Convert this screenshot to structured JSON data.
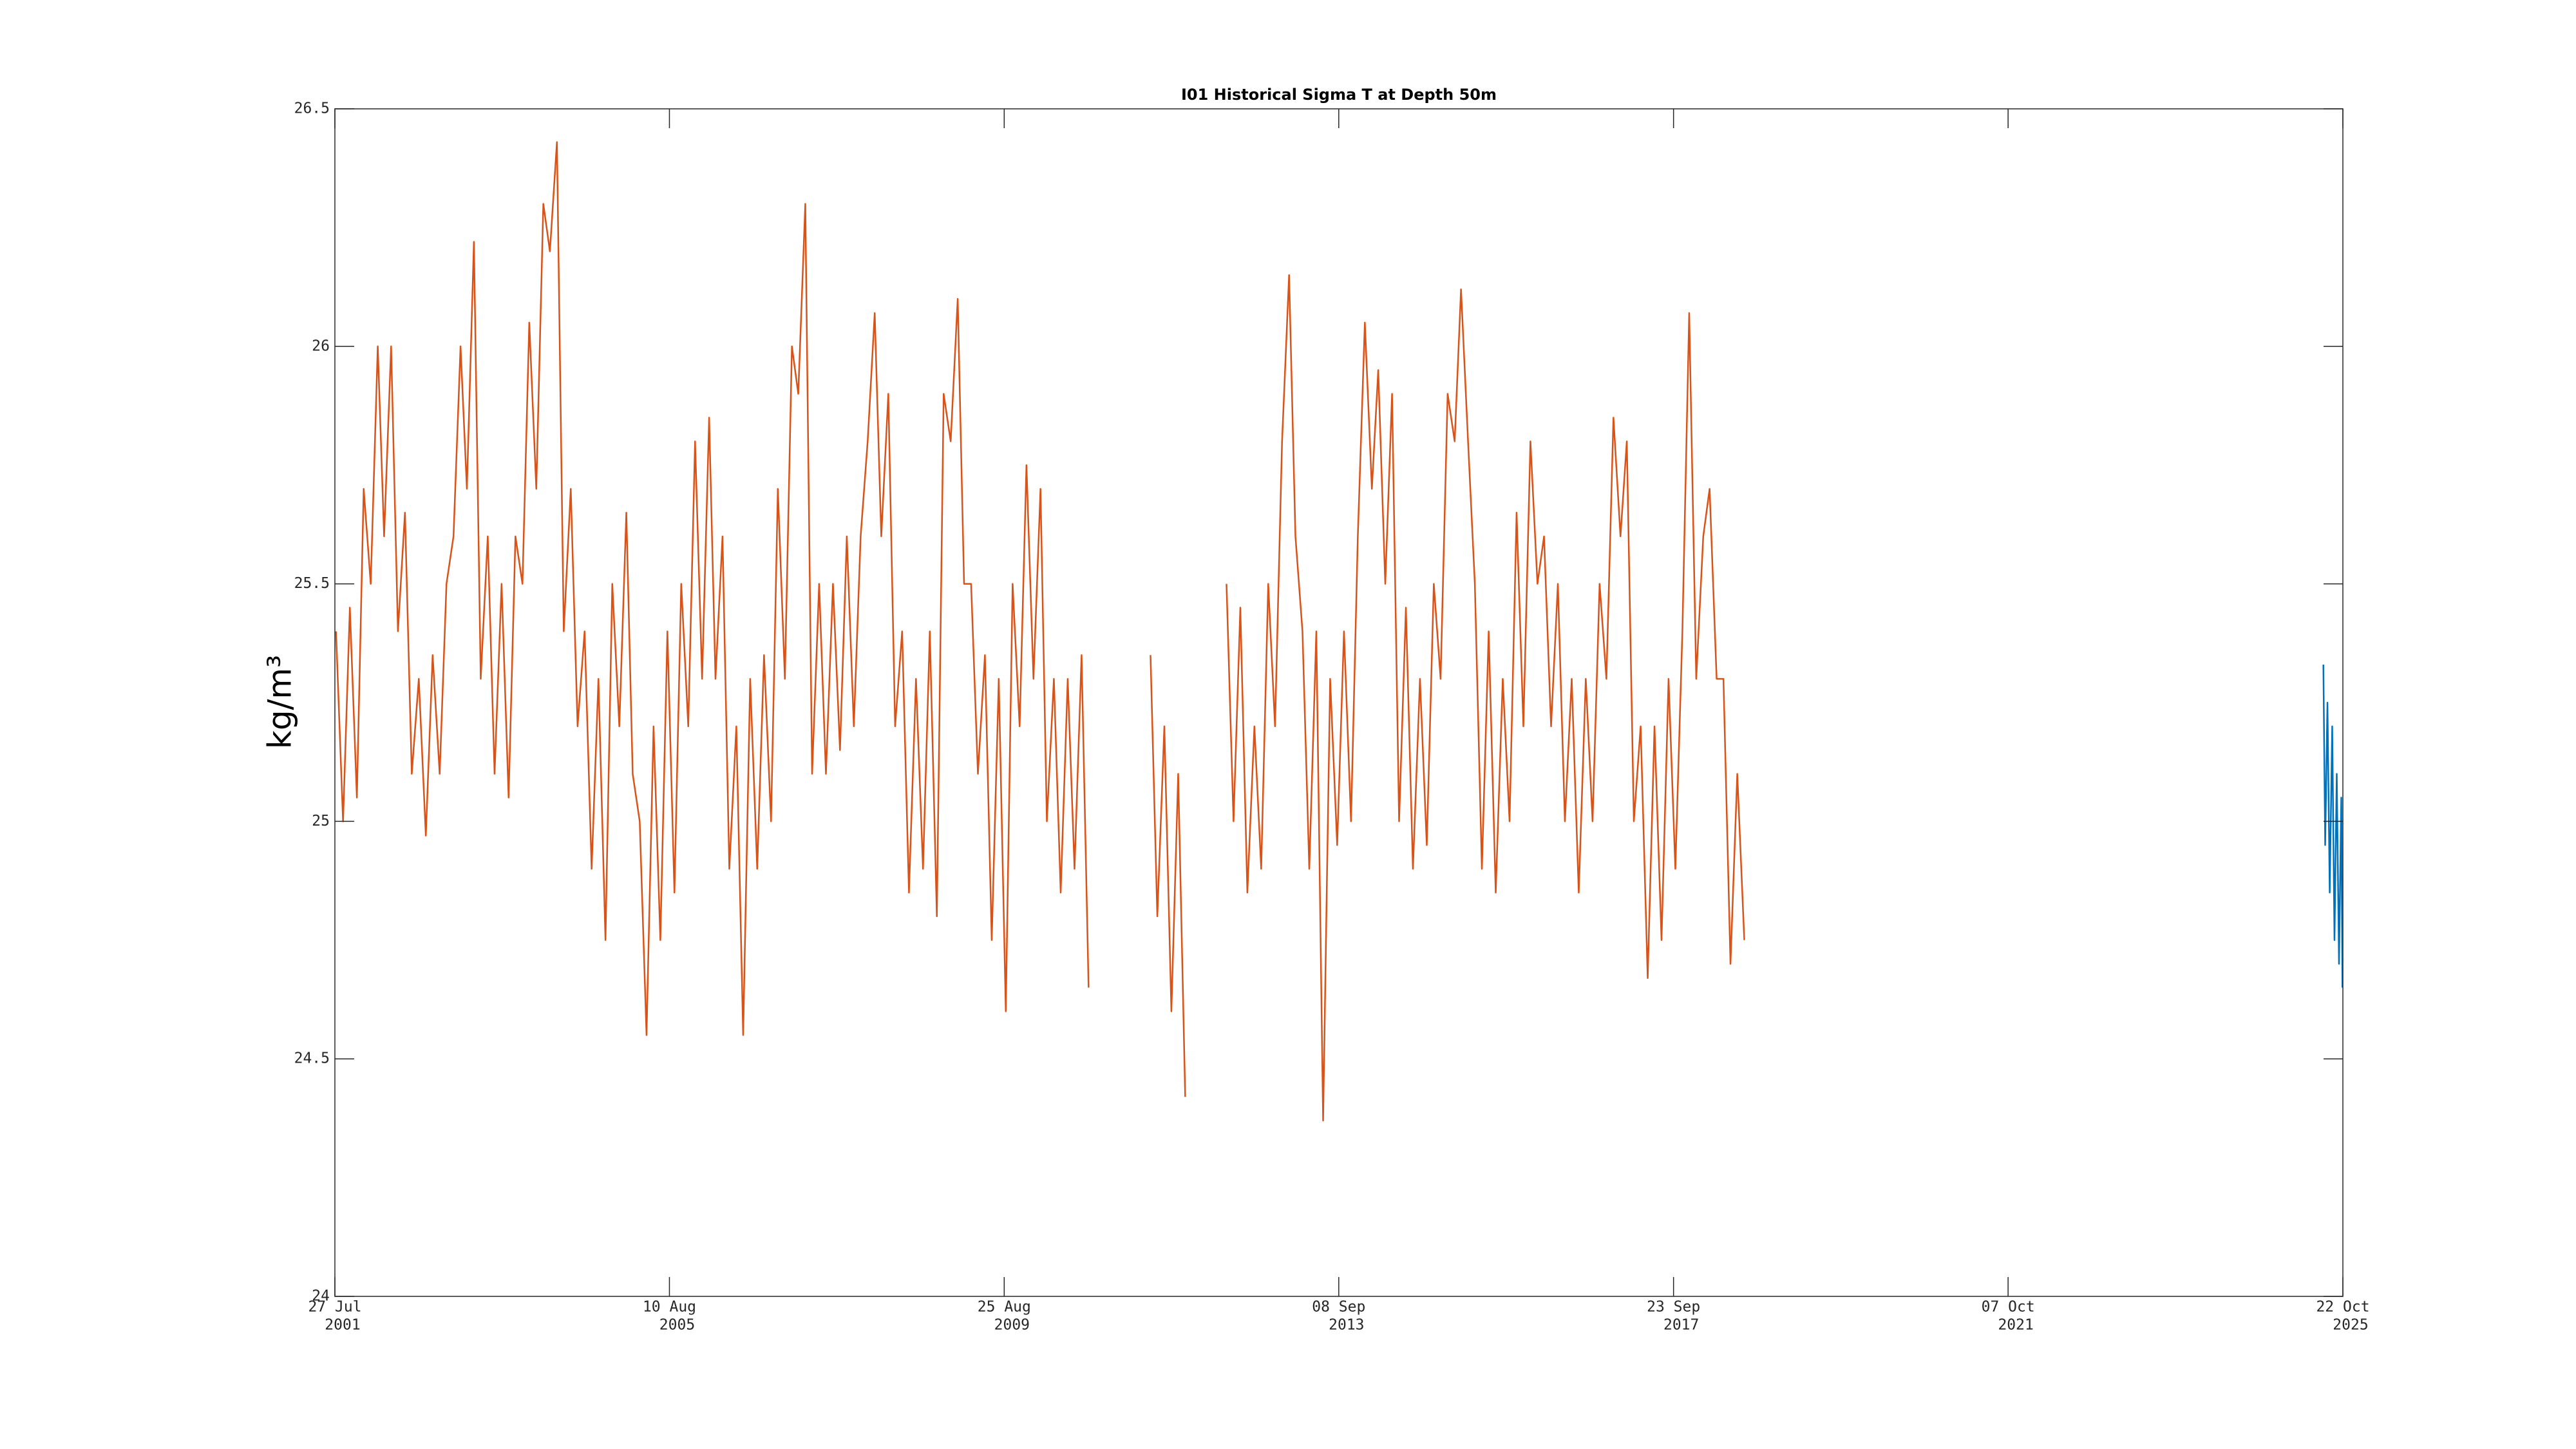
{
  "chart_data": {
    "type": "line",
    "title": "I01 Historical Sigma T at Depth 50m",
    "ylabel": "kg/m³",
    "xlim": [
      "2001-07-27",
      "2025-10-22"
    ],
    "xticks": [
      {
        "value": "2001-07-27",
        "label": [
          "27 Jul",
          "2001"
        ]
      },
      {
        "value": "2005-08-10",
        "label": [
          "10 Aug",
          "2005"
        ]
      },
      {
        "value": "2009-08-25",
        "label": [
          "25 Aug",
          "2009"
        ]
      },
      {
        "value": "2013-09-08",
        "label": [
          "08 Sep",
          "2013"
        ]
      },
      {
        "value": "2017-09-23",
        "label": [
          "23 Sep",
          "2017"
        ]
      },
      {
        "value": "2021-10-07",
        "label": [
          "07 Oct",
          "2021"
        ]
      },
      {
        "value": "2025-10-22",
        "label": [
          "22 Oct",
          "2025"
        ]
      }
    ],
    "ylim": [
      24,
      26.5
    ],
    "yticks": [
      24,
      24.5,
      25,
      25.5,
      26,
      26.5
    ],
    "series": [
      {
        "color": "#D95319",
        "x": [
          "2001-08-01",
          "2001-09-01",
          "2001-10-01",
          "2001-11-01",
          "2001-12-01",
          "2002-01-01",
          "2002-02-01",
          "2002-03-01",
          "2002-04-01",
          "2002-05-01",
          "2002-06-01",
          "2002-07-01",
          "2002-08-01",
          "2002-09-01",
          "2002-10-01",
          "2002-11-01",
          "2002-12-01",
          "2003-01-01",
          "2003-02-01",
          "2003-03-01",
          "2003-04-01",
          "2003-05-01",
          "2003-06-01",
          "2003-07-01",
          "2003-08-01",
          "2003-09-01",
          "2003-10-01",
          "2003-11-01",
          "2003-12-01",
          "2004-01-01",
          "2004-02-01",
          "2004-03-01",
          "2004-04-01",
          "2004-05-01",
          "2004-06-01",
          "2004-07-01",
          "2004-08-01",
          "2004-09-01",
          "2004-10-01",
          "2004-11-01",
          "2004-12-01",
          "2005-01-01",
          "2005-02-01",
          "2005-03-01",
          "2005-04-01",
          "2005-05-01",
          "2005-06-01",
          "2005-07-01",
          "2005-08-01",
          "2005-09-01",
          "2005-10-01",
          "2005-11-01",
          "2005-12-01",
          "2006-01-01",
          "2006-02-01",
          "2006-03-01",
          "2006-04-01",
          "2006-05-01",
          "2006-06-01",
          "2006-07-01",
          "2006-08-01",
          "2006-09-01",
          "2006-10-01",
          "2006-11-01",
          "2006-12-01",
          "2007-01-01",
          "2007-02-01",
          "2007-03-01",
          "2007-04-01",
          "2007-05-01",
          "2007-06-01",
          "2007-07-01",
          "2007-08-01",
          "2007-09-01",
          "2007-10-01",
          "2007-11-01",
          "2007-12-01",
          "2008-01-01",
          "2008-02-01",
          "2008-03-01",
          "2008-04-01",
          "2008-05-01",
          "2008-06-01",
          "2008-07-01",
          "2008-08-01",
          "2008-09-01",
          "2008-10-01",
          "2008-11-01",
          "2008-12-01",
          "2009-01-01",
          "2009-02-01",
          "2009-03-01",
          "2009-04-01",
          "2009-05-01",
          "2009-06-01",
          "2009-07-01",
          "2009-08-01",
          "2009-09-01",
          "2009-10-01",
          "2009-11-01",
          "2009-12-01",
          "2010-01-01",
          "2010-02-01",
          "2010-03-01",
          "2010-04-01",
          "2010-05-01",
          "2010-06-01",
          "2010-07-01",
          "2010-08-01",
          "2010-09-01",
          "2011-01-01",
          "2011-06-01",
          "2011-07-01",
          "2011-08-01",
          "2011-09-01",
          "2011-10-01",
          "2011-11-01",
          "2012-02-01",
          "2012-05-01",
          "2012-06-01",
          "2012-07-01",
          "2012-08-01",
          "2012-09-01",
          "2012-10-01",
          "2012-11-01",
          "2012-12-01",
          "2013-01-01",
          "2013-02-01",
          "2013-03-01",
          "2013-04-01",
          "2013-05-01",
          "2013-06-01",
          "2013-07-01",
          "2013-08-01",
          "2013-09-01",
          "2013-10-01",
          "2013-11-01",
          "2013-12-01",
          "2014-01-01",
          "2014-02-01",
          "2014-03-01",
          "2014-04-01",
          "2014-05-01",
          "2014-06-01",
          "2014-07-01",
          "2014-08-01",
          "2014-09-01",
          "2014-10-01",
          "2014-11-01",
          "2014-12-01",
          "2015-01-01",
          "2015-02-01",
          "2015-03-01",
          "2015-04-01",
          "2015-05-01",
          "2015-06-01",
          "2015-07-01",
          "2015-08-01",
          "2015-09-01",
          "2015-10-01",
          "2015-11-01",
          "2015-12-01",
          "2016-01-01",
          "2016-02-01",
          "2016-03-01",
          "2016-04-01",
          "2016-05-01",
          "2016-06-01",
          "2016-07-01",
          "2016-08-01",
          "2016-09-01",
          "2016-10-01",
          "2016-11-01",
          "2016-12-01",
          "2017-01-01",
          "2017-02-01",
          "2017-03-01",
          "2017-04-01",
          "2017-05-01",
          "2017-06-01",
          "2017-07-01",
          "2017-08-01",
          "2017-09-01",
          "2017-10-01",
          "2017-11-01",
          "2017-12-01",
          "2018-01-01",
          "2018-02-01",
          "2018-03-01",
          "2018-04-01",
          "2018-05-01",
          "2018-06-01",
          "2018-07-01",
          "2018-08-01"
        ],
        "values": [
          25.4,
          25.0,
          25.45,
          25.05,
          25.7,
          25.5,
          26.0,
          25.6,
          26.0,
          25.4,
          25.65,
          25.1,
          25.3,
          24.97,
          25.35,
          25.1,
          25.5,
          25.6,
          26.0,
          25.7,
          26.22,
          25.3,
          25.6,
          25.1,
          25.5,
          25.05,
          25.6,
          25.5,
          26.05,
          25.7,
          26.3,
          26.2,
          26.43,
          25.4,
          25.7,
          25.2,
          25.4,
          24.9,
          25.3,
          24.75,
          25.5,
          25.2,
          25.65,
          25.1,
          25.0,
          24.55,
          25.2,
          24.75,
          25.4,
          24.85,
          25.5,
          25.2,
          25.8,
          25.3,
          25.85,
          25.3,
          25.6,
          24.9,
          25.2,
          24.55,
          25.3,
          24.9,
          25.35,
          25.0,
          25.7,
          25.3,
          26.0,
          25.9,
          26.3,
          25.1,
          25.5,
          25.1,
          25.5,
          25.15,
          25.6,
          25.2,
          25.6,
          25.8,
          26.07,
          25.6,
          25.9,
          25.2,
          25.4,
          24.85,
          25.3,
          24.9,
          25.4,
          24.8,
          25.9,
          25.8,
          26.1,
          25.5,
          25.5,
          25.1,
          25.35,
          24.75,
          25.3,
          24.6,
          25.5,
          25.2,
          25.75,
          25.3,
          25.7,
          25.0,
          25.3,
          24.85,
          25.3,
          24.9,
          25.35,
          24.65,
          null,
          25.35,
          24.8,
          25.2,
          24.6,
          25.1,
          24.42,
          null,
          25.5,
          25.0,
          25.45,
          24.85,
          25.2,
          24.9,
          25.5,
          25.2,
          25.8,
          26.15,
          25.6,
          25.4,
          24.9,
          25.4,
          24.37,
          25.3,
          24.95,
          25.4,
          25.0,
          25.6,
          26.05,
          25.7,
          25.95,
          25.5,
          25.9,
          25.0,
          25.45,
          24.9,
          25.3,
          24.95,
          25.5,
          25.3,
          25.9,
          25.8,
          26.12,
          25.8,
          25.5,
          24.9,
          25.4,
          24.85,
          25.3,
          25.0,
          25.65,
          25.2,
          25.8,
          25.5,
          25.6,
          25.2,
          25.5,
          25.0,
          25.3,
          24.85,
          25.3,
          25.0,
          25.5,
          25.3,
          25.85,
          25.6,
          25.8,
          25.0,
          25.2,
          24.67,
          25.2,
          24.75,
          25.3,
          24.9,
          25.4,
          26.07,
          25.3,
          25.6,
          25.7,
          25.3,
          25.3,
          24.7,
          25.1,
          24.75
        ]
      },
      {
        "color": "#0072BD",
        "x": [
          "2025-07-28",
          "2025-08-05",
          "2025-08-15",
          "2025-08-25",
          "2025-09-05",
          "2025-09-15",
          "2025-09-25",
          "2025-10-05",
          "2025-10-15",
          "2025-10-20"
        ],
        "values": [
          25.33,
          24.95,
          25.25,
          24.85,
          25.2,
          24.75,
          25.1,
          24.7,
          25.05,
          24.65
        ]
      }
    ]
  }
}
